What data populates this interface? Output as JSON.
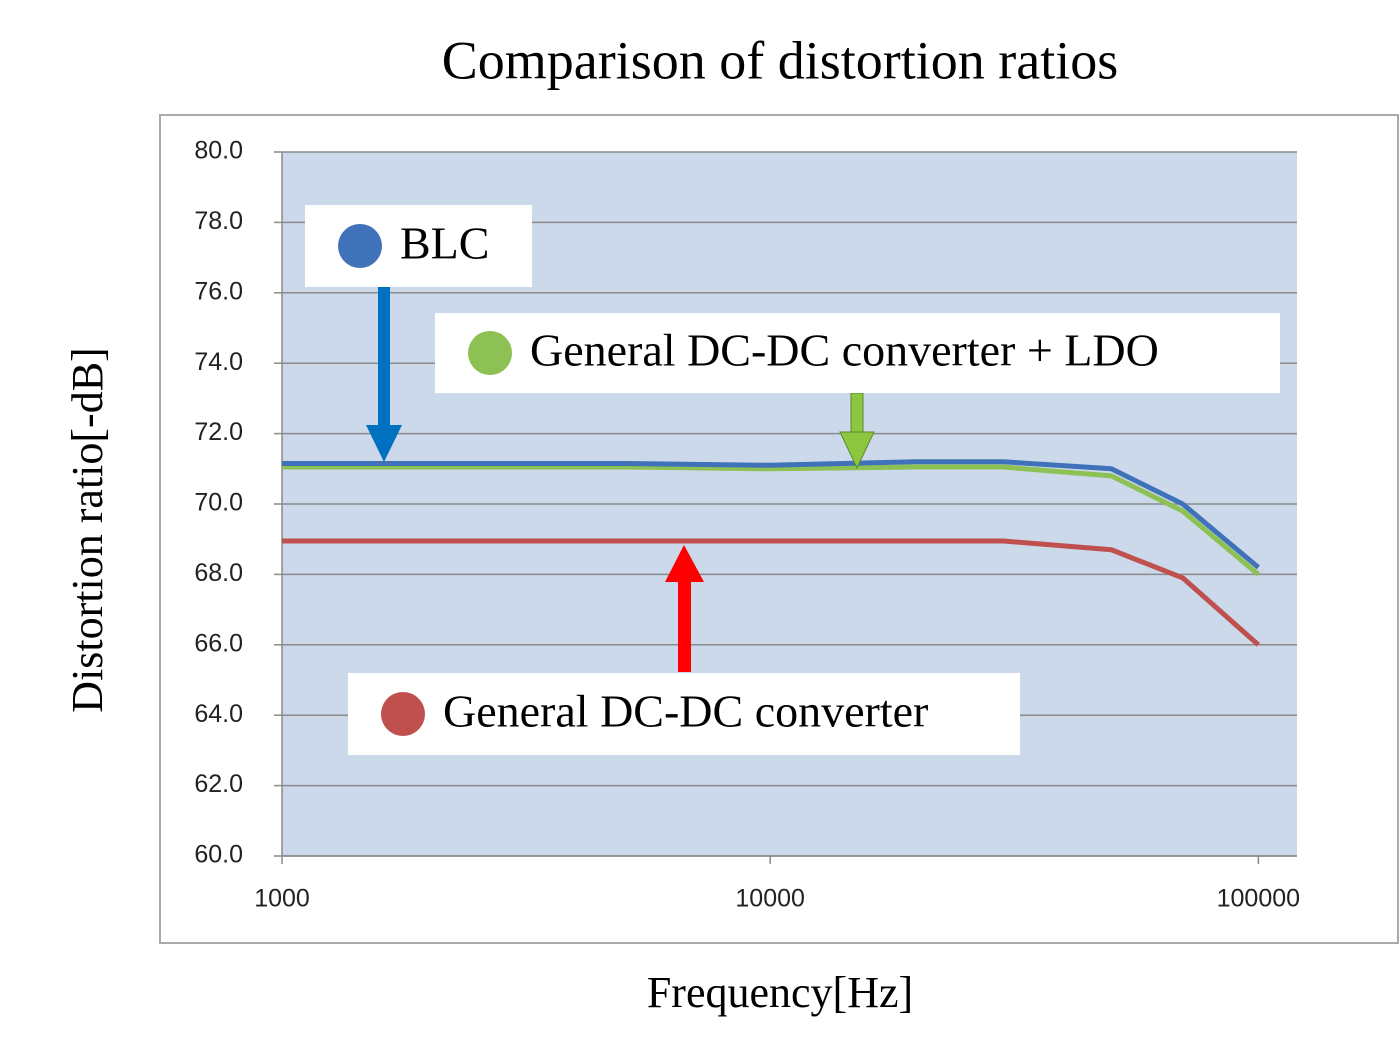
{
  "chart_data": {
    "type": "line",
    "title": "Comparison of distortion ratios",
    "x_label": "Frequency[Hz]",
    "y_label": "Distortion ratio[-dB]",
    "x_scale": "log",
    "grid": true,
    "xlim": [
      1000,
      120000
    ],
    "xticks": [
      1000,
      10000,
      100000
    ],
    "ylim": [
      60,
      80
    ],
    "yticks": [
      {
        "value": 60,
        "label": "60.0"
      },
      {
        "value": 62,
        "label": "62.0"
      },
      {
        "value": 64,
        "label": "64.0"
      },
      {
        "value": 66,
        "label": "66.0"
      },
      {
        "value": 68,
        "label": "68.0"
      },
      {
        "value": 70,
        "label": "70.0"
      },
      {
        "value": 72,
        "label": "72.0"
      },
      {
        "value": 74,
        "label": "74.0"
      },
      {
        "value": 76,
        "label": "76.0"
      },
      {
        "value": 78,
        "label": "78.0"
      },
      {
        "value": 80,
        "label": "80.0"
      }
    ],
    "x": [
      1000,
      2000,
      5000,
      10000,
      20000,
      30000,
      50000,
      70000,
      100000
    ],
    "series": [
      {
        "name": "BLC",
        "color": "#3f72b8",
        "values": [
          71.15,
          71.15,
          71.15,
          71.1,
          71.2,
          71.2,
          71.0,
          70.0,
          68.2
        ]
      },
      {
        "name": "General DC-DC converter + LDO",
        "color": "#8dc153",
        "values": [
          71.05,
          71.05,
          71.05,
          71.0,
          71.05,
          71.05,
          70.8,
          69.8,
          68.0
        ]
      },
      {
        "name": "General DC-DC converter",
        "color": "#c0504d",
        "values": [
          68.95,
          68.95,
          68.95,
          68.95,
          68.95,
          68.95,
          68.7,
          67.9,
          66.0
        ]
      }
    ]
  }
}
